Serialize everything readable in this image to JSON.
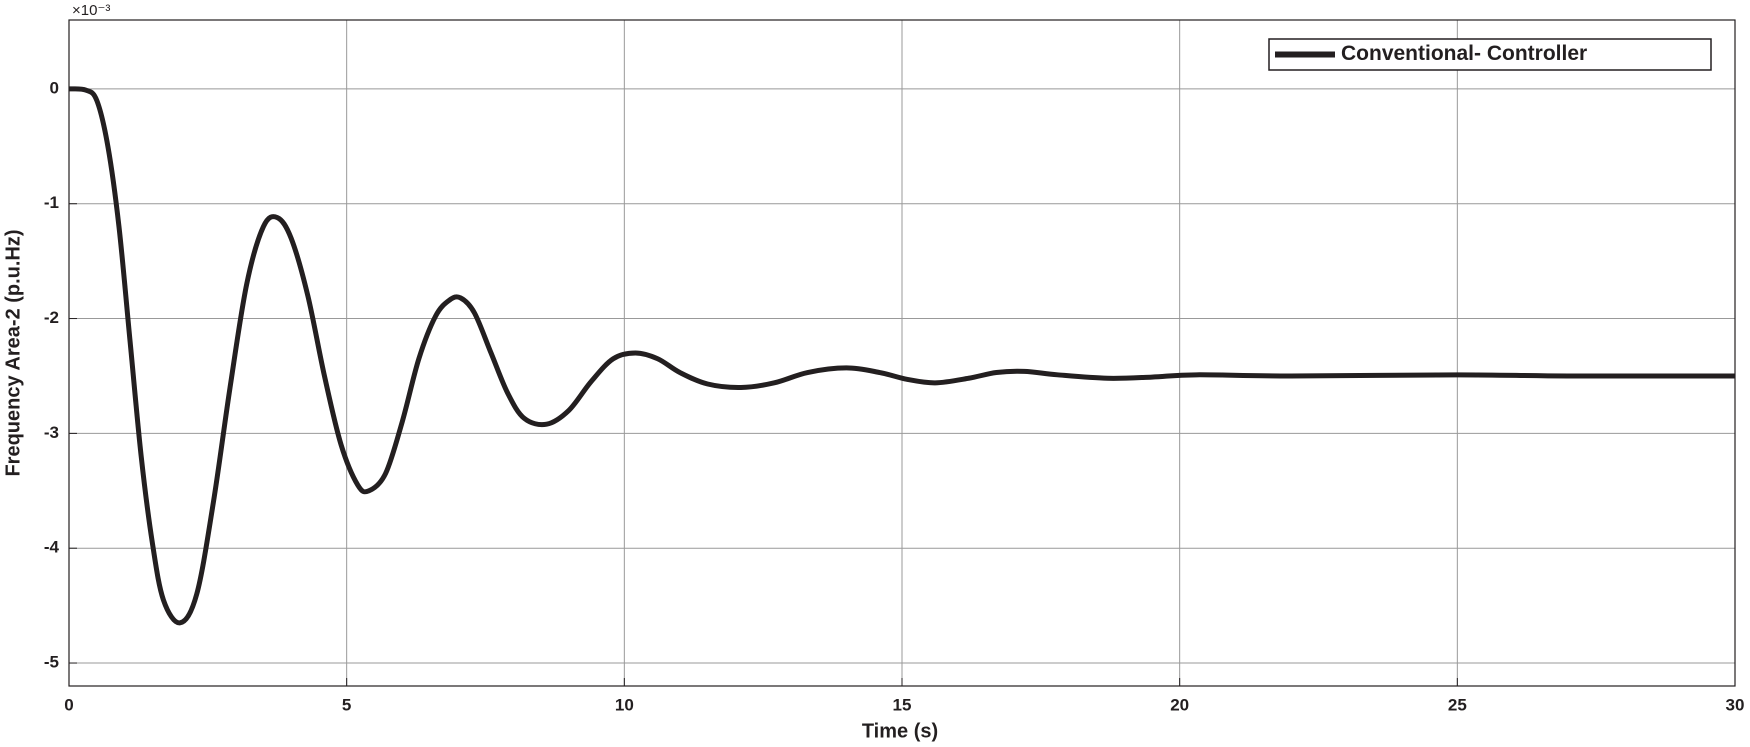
{
  "chart_data": {
    "type": "line",
    "x_label": "Time (s)",
    "y_label": "Frequency Area-2 (p.u.Hz)",
    "y_exponent": "×10⁻³",
    "xlim": [
      0,
      30
    ],
    "xticks": [
      0,
      5,
      10,
      15,
      20,
      25,
      30
    ],
    "ylim": [
      -5.2,
      0.6
    ],
    "yticks": [
      -5,
      -4,
      -3,
      -2,
      -1,
      0
    ],
    "grid": true,
    "legend": "upper right",
    "series": [
      {
        "name": "Conventional- Controller",
        "color": "#231f20",
        "x": [
          0,
          0.3,
          0.5,
          0.7,
          0.9,
          1.1,
          1.3,
          1.5,
          1.7,
          2.0,
          2.3,
          2.6,
          2.9,
          3.2,
          3.5,
          3.75,
          4.0,
          4.3,
          4.6,
          4.9,
          5.2,
          5.4,
          5.7,
          6.0,
          6.3,
          6.6,
          6.85,
          7.05,
          7.3,
          7.6,
          7.9,
          8.2,
          8.6,
          9.0,
          9.4,
          9.8,
          10.2,
          10.6,
          11.0,
          11.5,
          12.1,
          12.7,
          13.3,
          14.0,
          14.6,
          15.1,
          15.6,
          16.2,
          16.7,
          17.2,
          17.8,
          18.7,
          19.5,
          20.3,
          22,
          25,
          27,
          30
        ],
        "values": [
          0,
          -0.01,
          -0.1,
          -0.5,
          -1.2,
          -2.2,
          -3.2,
          -3.95,
          -4.45,
          -4.65,
          -4.4,
          -3.6,
          -2.6,
          -1.7,
          -1.2,
          -1.12,
          -1.3,
          -1.8,
          -2.5,
          -3.1,
          -3.45,
          -3.5,
          -3.35,
          -2.9,
          -2.35,
          -1.98,
          -1.84,
          -1.82,
          -1.95,
          -2.3,
          -2.65,
          -2.87,
          -2.92,
          -2.8,
          -2.55,
          -2.35,
          -2.3,
          -2.35,
          -2.47,
          -2.57,
          -2.6,
          -2.56,
          -2.47,
          -2.43,
          -2.47,
          -2.53,
          -2.56,
          -2.52,
          -2.47,
          -2.46,
          -2.49,
          -2.52,
          -2.51,
          -2.49,
          -2.5,
          -2.49,
          -2.5,
          -2.5
        ]
      }
    ]
  }
}
